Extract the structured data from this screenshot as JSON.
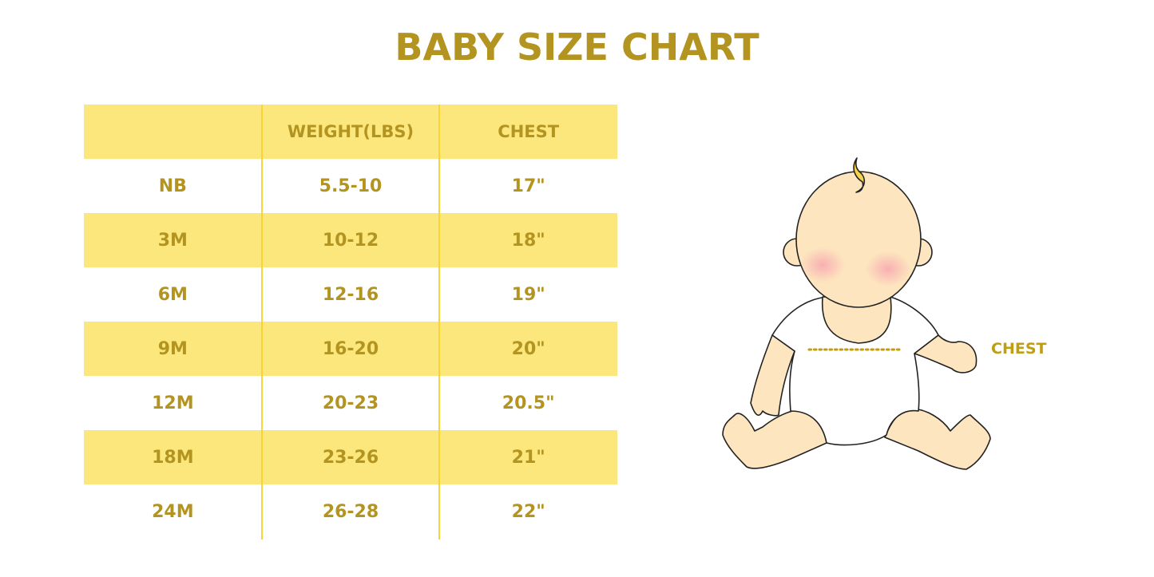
{
  "title": "BABY SIZE CHART",
  "table": {
    "headers": [
      "",
      "WEIGHT(LBS)",
      "CHEST"
    ],
    "rows": [
      [
        "NB",
        "5.5-10",
        "17\""
      ],
      [
        "3M",
        "10-12",
        "18\""
      ],
      [
        "6M",
        "12-16",
        "19\""
      ],
      [
        "9M",
        "16-20",
        "20\""
      ],
      [
        "12M",
        "20-23",
        "20.5\""
      ],
      [
        "18M",
        "23-26",
        "21\""
      ],
      [
        "24M",
        "26-28",
        "22\""
      ]
    ]
  },
  "illustration": {
    "chest_label": "CHEST"
  },
  "colors": {
    "accent_text": "#b39420",
    "band": "#fce77d",
    "divider": "#f8d436",
    "skin": "#fde5bf"
  }
}
